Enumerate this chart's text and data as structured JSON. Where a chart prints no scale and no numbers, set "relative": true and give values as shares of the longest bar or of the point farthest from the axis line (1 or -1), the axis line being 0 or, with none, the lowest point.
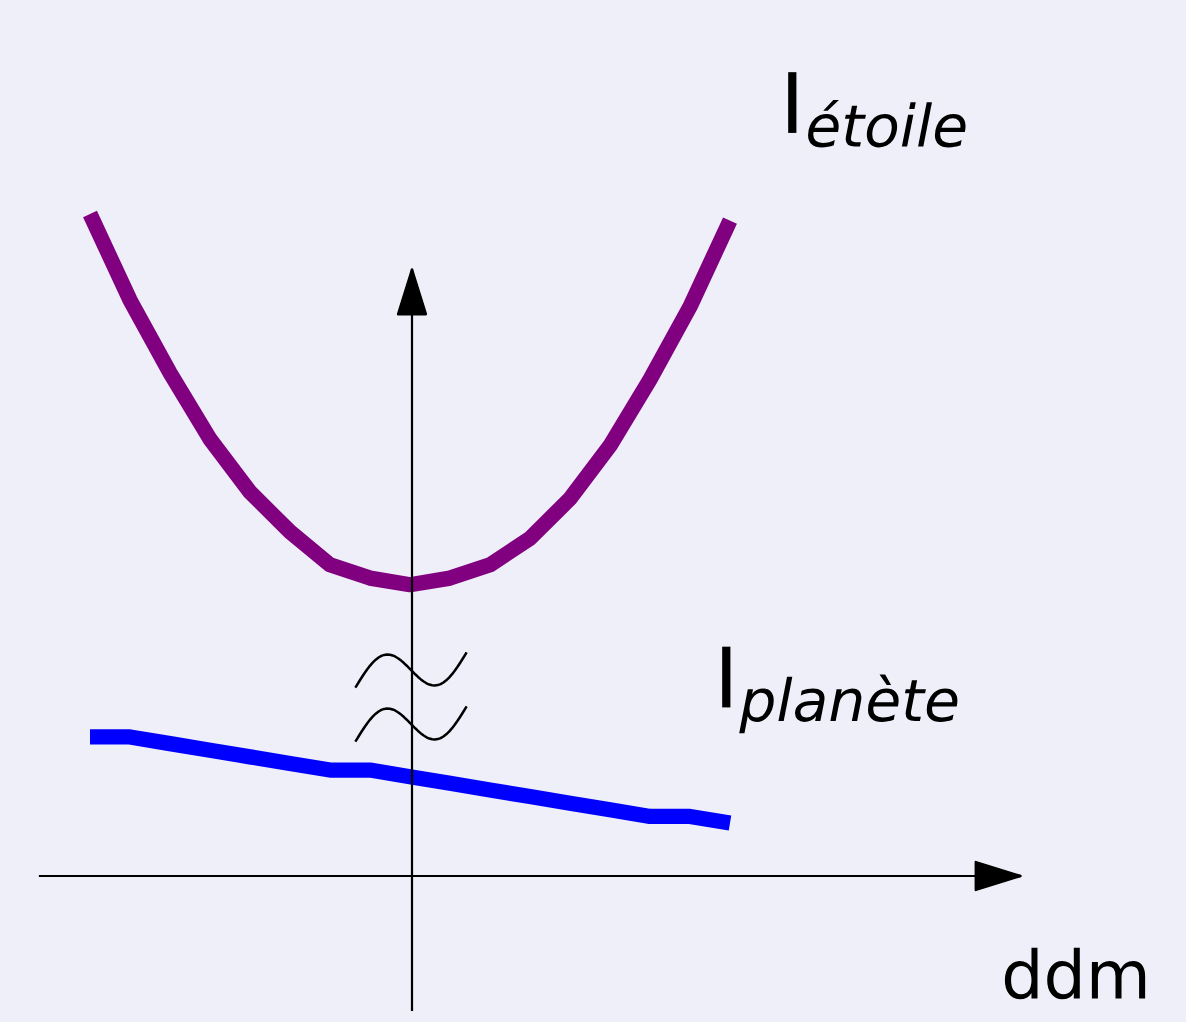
{
  "chart_data": {
    "type": "line",
    "relative": true,
    "xlabel": "ddm",
    "legend": false,
    "categories": [
      null,
      null,
      null,
      null,
      null,
      null,
      null,
      null,
      null,
      null,
      null,
      null,
      null,
      null,
      null,
      null,
      null
    ],
    "series": [
      {
        "name": "I$_{étoile}$",
        "color": "#800080",
        "values": [
          1,
          0.87,
          0.76,
          0.66,
          0.58,
          0.52,
          0.47,
          0.45,
          0.44,
          0.45,
          0.47,
          0.51,
          0.57,
          0.65,
          0.75,
          0.86,
          0.99
        ]
      },
      {
        "name": "I$_{planète}$",
        "color": "#0000ff",
        "values": [
          0.21,
          0.21,
          0.2,
          0.19,
          0.18,
          0.17,
          0.16,
          0.16,
          0.15,
          0.14,
          0.13,
          0.12,
          0.11,
          0.1,
          0.09,
          0.09,
          0.08
        ]
      }
    ]
  }
}
